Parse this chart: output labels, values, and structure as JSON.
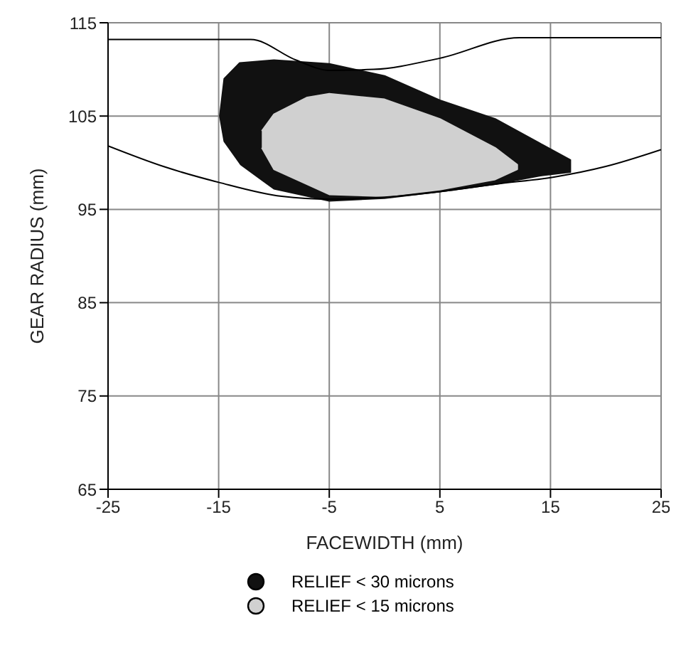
{
  "chart_data": {
    "type": "area",
    "xlabel": "FACEWIDTH (mm)",
    "ylabel": "GEAR RADIUS (mm)",
    "xlim": [
      -25,
      25
    ],
    "xticks": [
      -25,
      -15,
      -5,
      5,
      15,
      25
    ],
    "ylim": [
      65,
      115
    ],
    "yticks": [
      65,
      75,
      85,
      95,
      105,
      115
    ],
    "grid": true,
    "legend": "bottom",
    "series": [
      {
        "name": "RELIEF < 30 microns",
        "color": "#111111",
        "x": [
          -14.9,
          -14.5,
          -13.1,
          -10,
          -5,
          0,
          5,
          10,
          14,
          16.8,
          16.8,
          14,
          10,
          5,
          0,
          -5,
          -10,
          -13,
          -14.5,
          -14.9
        ],
        "values": [
          105,
          109,
          110.7,
          111,
          110.6,
          109.3,
          106.7,
          104.7,
          102.1,
          100.3,
          99,
          98.6,
          97.7,
          96.9,
          96.2,
          95.9,
          97.2,
          99.8,
          102.3,
          105
        ]
      },
      {
        "name": "RELIEF < 15 microns",
        "color": "#d0d0d0",
        "x": [
          -11.1,
          -10,
          -7,
          -5,
          0,
          5,
          10,
          12,
          12,
          10,
          5,
          0,
          -5,
          -10,
          -11.1
        ],
        "values": [
          103.4,
          105.2,
          107,
          107.4,
          106.8,
          104.7,
          101.6,
          99.8,
          99.3,
          98.2,
          97.1,
          96.4,
          96.6,
          99.3,
          101.6
        ]
      },
      {
        "type": "line",
        "color": "#000000",
        "x": [
          -25,
          -12.1,
          -8,
          -5,
          -1,
          5,
          12.2,
          25
        ],
        "values": [
          113.2,
          113.2,
          111,
          109.9,
          110,
          111.2,
          113.4,
          113.4
        ]
      },
      {
        "type": "line",
        "color": "#000000",
        "x": [
          -25,
          -20,
          -15,
          -9.3,
          -5,
          0,
          5,
          10,
          15.5,
          20,
          25
        ],
        "values": [
          101.8,
          99.6,
          97.9,
          96.4,
          96.1,
          96.3,
          96.9,
          97.7,
          98.5,
          99.6,
          101.4
        ]
      }
    ]
  }
}
